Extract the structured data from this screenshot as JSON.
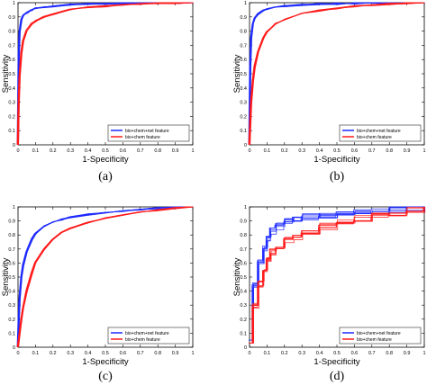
{
  "figure": {
    "panel_labels": [
      "(a)",
      "(b)",
      "(c)",
      "(d)"
    ]
  },
  "colors": {
    "series_1": "#1e2bff",
    "series_2": "#ff1a1a",
    "axes": "#000000"
  },
  "chart_data": [
    {
      "panel": "(a)",
      "type": "line",
      "xlabel": "1-Specificity",
      "ylabel": "Sensitivity",
      "xlim": [
        0,
        1
      ],
      "ylim": [
        0,
        1
      ],
      "xticks": [
        "0",
        "0.1",
        "0.2",
        "0.3",
        "0.4",
        "0.5",
        "0.6",
        "0.7",
        "0.8",
        "0.9",
        "1"
      ],
      "yticks": [
        "0",
        "0.1",
        "0.2",
        "0.3",
        "0.4",
        "0.5",
        "0.6",
        "0.7",
        "0.8",
        "0.9",
        "1"
      ],
      "legend_position": "bottom-right",
      "grid": false,
      "series": [
        {
          "name": "bio+chem+net feature",
          "color": "#1e2bff",
          "x": [
            0,
            0.005,
            0.01,
            0.02,
            0.03,
            0.05,
            0.08,
            0.1,
            0.15,
            0.2,
            0.3,
            0.4,
            0.5,
            0.6,
            0.7,
            0.8,
            0.9,
            1
          ],
          "y": [
            0,
            0.62,
            0.8,
            0.88,
            0.91,
            0.93,
            0.95,
            0.96,
            0.97,
            0.975,
            0.985,
            0.99,
            0.993,
            0.995,
            0.997,
            0.998,
            0.999,
            1
          ]
        },
        {
          "name": "bio+chem feature",
          "color": "#ff1a1a",
          "x": [
            0,
            0.005,
            0.01,
            0.02,
            0.03,
            0.05,
            0.08,
            0.1,
            0.15,
            0.2,
            0.3,
            0.4,
            0.5,
            0.6,
            0.7,
            0.8,
            0.9,
            1
          ],
          "y": [
            0,
            0.3,
            0.48,
            0.65,
            0.73,
            0.8,
            0.85,
            0.87,
            0.9,
            0.92,
            0.95,
            0.965,
            0.975,
            0.985,
            0.99,
            0.995,
            0.998,
            1
          ]
        }
      ]
    },
    {
      "panel": "(b)",
      "type": "line",
      "xlabel": "1-Specificity",
      "ylabel": "Sensitivity",
      "xlim": [
        0,
        1
      ],
      "ylim": [
        0,
        1
      ],
      "xticks": [
        "0",
        "0.1",
        "0.2",
        "0.3",
        "0.4",
        "0.5",
        "0.6",
        "0.7",
        "0.8",
        "0.9",
        "1"
      ],
      "yticks": [
        "0",
        "0.1",
        "0.2",
        "0.3",
        "0.4",
        "0.5",
        "0.6",
        "0.7",
        "0.8",
        "0.9",
        "1"
      ],
      "legend_position": "bottom-right",
      "grid": false,
      "series": [
        {
          "name": "bio+chem+net feature",
          "color": "#1e2bff",
          "x": [
            0,
            0.005,
            0.01,
            0.02,
            0.03,
            0.05,
            0.08,
            0.1,
            0.15,
            0.2,
            0.3,
            0.4,
            0.5,
            0.6,
            0.7,
            0.8,
            0.9,
            1
          ],
          "y": [
            0,
            0.55,
            0.75,
            0.85,
            0.89,
            0.92,
            0.945,
            0.955,
            0.968,
            0.975,
            0.985,
            0.99,
            0.993,
            0.995,
            0.997,
            0.998,
            0.999,
            1
          ]
        },
        {
          "name": "bio+chem feature",
          "color": "#ff1a1a",
          "x": [
            0,
            0.01,
            0.02,
            0.03,
            0.05,
            0.08,
            0.1,
            0.15,
            0.2,
            0.3,
            0.4,
            0.5,
            0.6,
            0.7,
            0.8,
            0.9,
            1
          ],
          "y": [
            0,
            0.3,
            0.45,
            0.55,
            0.66,
            0.75,
            0.79,
            0.85,
            0.88,
            0.92,
            0.945,
            0.96,
            0.975,
            0.985,
            0.99,
            0.996,
            1
          ]
        }
      ]
    },
    {
      "panel": "(c)",
      "type": "line",
      "xlabel": "1-Specificity",
      "ylabel": "Sensitivity",
      "xlim": [
        0,
        1
      ],
      "ylim": [
        0,
        1
      ],
      "xticks": [
        "0",
        "0.1",
        "0.2",
        "0.3",
        "0.4",
        "0.5",
        "0.6",
        "0.7",
        "0.8",
        "0.9",
        "1"
      ],
      "yticks": [
        "0",
        "0.1",
        "0.2",
        "0.3",
        "0.4",
        "0.5",
        "0.6",
        "0.7",
        "0.8",
        "0.9",
        "1"
      ],
      "legend_position": "bottom-right",
      "grid": false,
      "series": [
        {
          "name": "bio+chem+net feature",
          "color": "#1e2bff",
          "x": [
            0,
            0.005,
            0.01,
            0.02,
            0.03,
            0.05,
            0.08,
            0.1,
            0.15,
            0.2,
            0.25,
            0.3,
            0.4,
            0.5,
            0.6,
            0.7,
            0.8,
            0.9,
            1
          ],
          "y": [
            0,
            0.2,
            0.35,
            0.5,
            0.58,
            0.68,
            0.77,
            0.81,
            0.86,
            0.89,
            0.91,
            0.925,
            0.945,
            0.96,
            0.97,
            0.98,
            0.99,
            0.995,
            1
          ]
        },
        {
          "name": "bio+chem feature",
          "color": "#ff1a1a",
          "x": [
            0,
            0.01,
            0.02,
            0.03,
            0.05,
            0.08,
            0.1,
            0.15,
            0.2,
            0.25,
            0.3,
            0.4,
            0.5,
            0.6,
            0.7,
            0.8,
            0.9,
            1
          ],
          "y": [
            0,
            0.1,
            0.2,
            0.28,
            0.4,
            0.53,
            0.6,
            0.7,
            0.77,
            0.82,
            0.85,
            0.89,
            0.92,
            0.94,
            0.96,
            0.975,
            0.99,
            1
          ]
        }
      ]
    },
    {
      "panel": "(d)",
      "type": "line",
      "xlabel": "1-Specificity",
      "ylabel": "Sensitivity",
      "xlim": [
        0,
        1
      ],
      "ylim": [
        0,
        1
      ],
      "xticks": [
        "0",
        "0.1",
        "0.2",
        "0.3",
        "0.4",
        "0.5",
        "0.6",
        "0.7",
        "0.8",
        "0.9",
        "1"
      ],
      "yticks": [
        "0",
        "0.1",
        "0.2",
        "0.3",
        "0.4",
        "0.5",
        "0.6",
        "0.7",
        "0.8",
        "0.9",
        "1"
      ],
      "legend_position": "bottom-right",
      "grid": false,
      "series": [
        {
          "name": "bio+chem+net feature",
          "color": "#1e2bff",
          "x": [
            0,
            0.02,
            0.05,
            0.08,
            0.1,
            0.12,
            0.15,
            0.2,
            0.25,
            0.3,
            0.4,
            0.5,
            0.6,
            0.7,
            0.8,
            0.9,
            1
          ],
          "y": [
            0.05,
            0.45,
            0.62,
            0.7,
            0.78,
            0.83,
            0.86,
            0.9,
            0.91,
            0.93,
            0.94,
            0.95,
            0.96,
            0.97,
            0.98,
            0.99,
            1
          ]
        },
        {
          "name": "bio+chem feature",
          "color": "#ff1a1a",
          "x": [
            0,
            0.02,
            0.05,
            0.08,
            0.1,
            0.12,
            0.15,
            0.2,
            0.25,
            0.3,
            0.4,
            0.5,
            0.6,
            0.7,
            0.8,
            0.9,
            1
          ],
          "y": [
            0.03,
            0.3,
            0.45,
            0.55,
            0.62,
            0.68,
            0.72,
            0.76,
            0.79,
            0.82,
            0.86,
            0.9,
            0.92,
            0.94,
            0.96,
            0.98,
            1
          ]
        }
      ]
    }
  ]
}
